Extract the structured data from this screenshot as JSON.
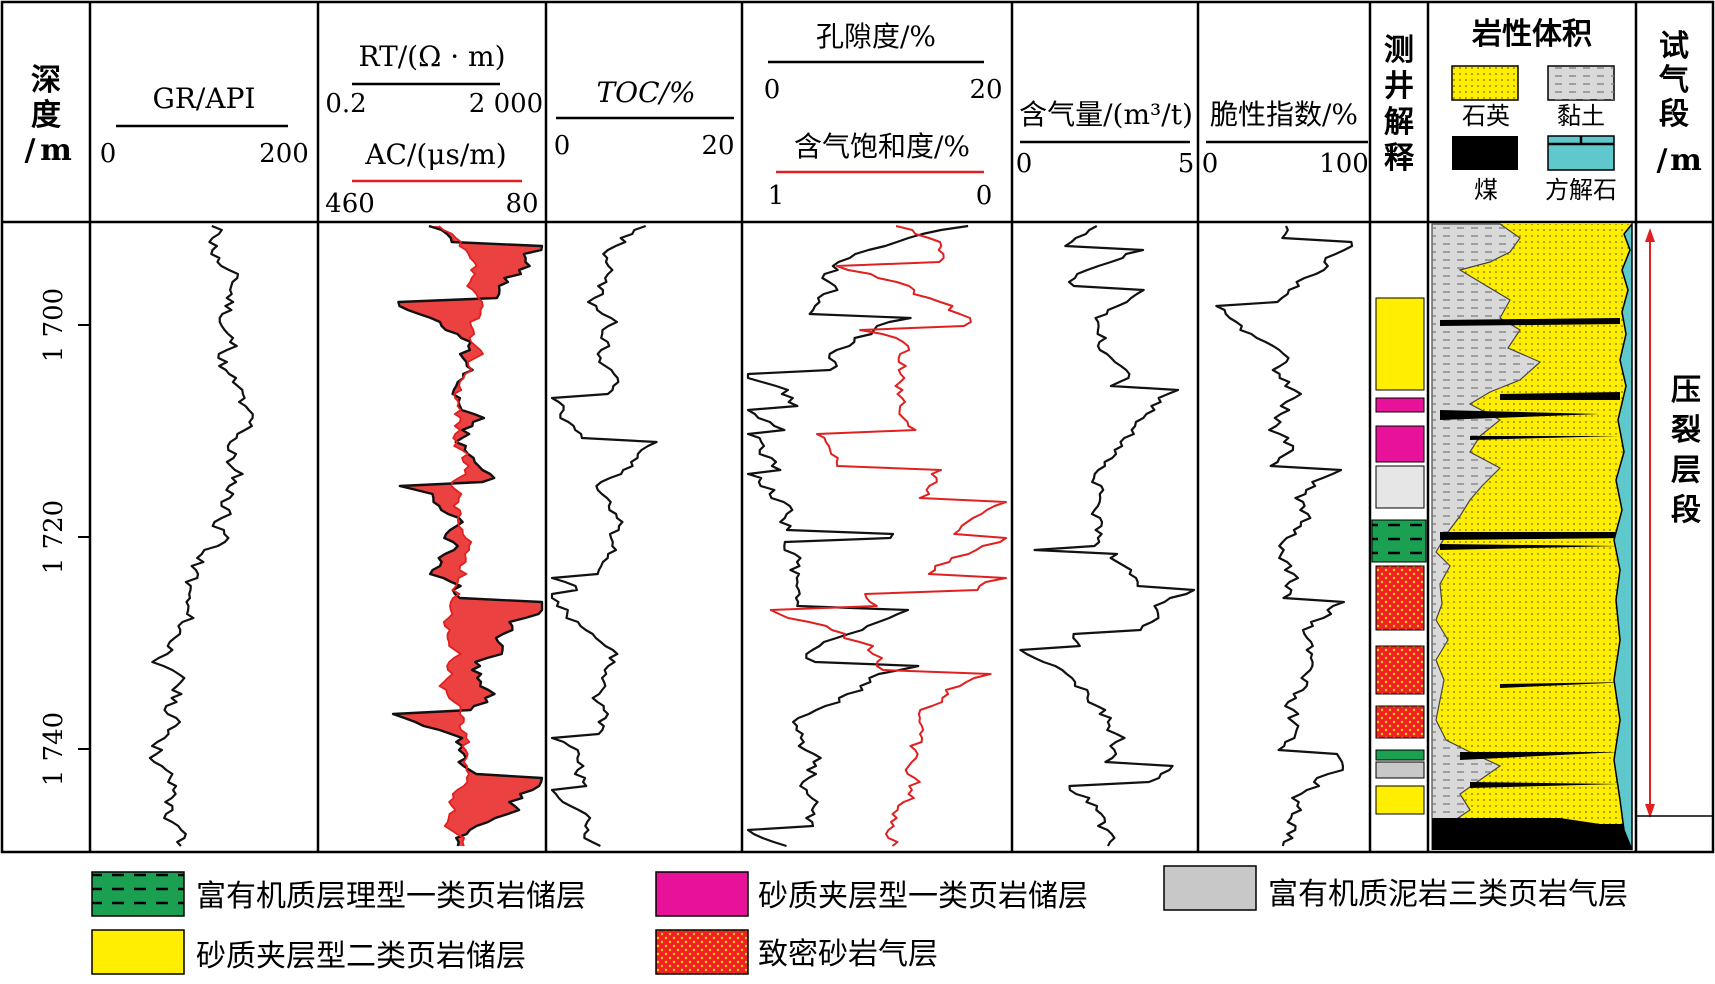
{
  "columns": {
    "depth": {
      "label_chars": [
        "深",
        "度",
        "/",
        "m"
      ],
      "ticks": [
        "1 700",
        "1 720",
        "1 740"
      ]
    },
    "gr": {
      "label": "GR/API",
      "min": "0",
      "max": "200"
    },
    "rt": {
      "label": "RT/(Ω · m)",
      "min": "0.2",
      "max": "2 000"
    },
    "ac": {
      "label": "AC/(μs/m)",
      "min": "460",
      "max": "80"
    },
    "toc": {
      "label": "TOC/%",
      "min": "0",
      "max": "20"
    },
    "porosity": {
      "label": "孔隙度/%",
      "min": "0",
      "max": "20"
    },
    "gas_saturation": {
      "label": "含气饱和度/%",
      "min": "1",
      "max": "0"
    },
    "gas_content": {
      "label": "含气量/(m³/t)",
      "min": "0",
      "max": "5"
    },
    "brittleness": {
      "label": "脆性指数/%",
      "min": "0",
      "max": "100"
    },
    "interpretation": {
      "label_chars": [
        "测",
        "井",
        "解",
        "释"
      ]
    },
    "lithology": {
      "title": "岩性体积",
      "items": [
        {
          "name": "石英",
          "color": "#ffee00"
        },
        {
          "name": "黏土",
          "color": "#d9d9d9"
        },
        {
          "name": "煤",
          "color": "#000000"
        },
        {
          "name": "方解石",
          "color": "#5ec8cc"
        }
      ]
    },
    "test_section": {
      "label_chars": [
        "试",
        "气",
        "段",
        "/",
        "m"
      ],
      "interval_chars": [
        "压",
        "裂",
        "层",
        "段"
      ]
    }
  },
  "legend": [
    {
      "label": "富有机质层理型一类页岩储层",
      "color": "#1aa050"
    },
    {
      "label": "砂质夹层型一类页岩储层",
      "color": "#e8129a"
    },
    {
      "label": "富有机质泥岩三类页岩气层",
      "color": "#c8c8c8"
    },
    {
      "label": "砂质夹层型二类页岩储层",
      "color": "#ffee00"
    },
    {
      "label": "致密砂岩气层",
      "color": "#ee2222"
    }
  ],
  "colors": {
    "curve": "#111111",
    "red_curve": "#e02020",
    "fill_red": "#e82020",
    "arrow": "#e02020"
  }
}
